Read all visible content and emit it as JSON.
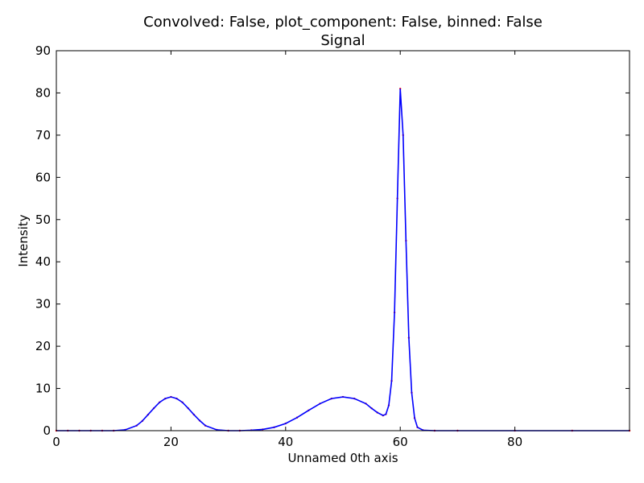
{
  "chart_data": {
    "type": "line",
    "title": "Convolved: False, plot_component: False, binned: False",
    "subtitle": "Signal",
    "xlabel": "Unnamed 0th axis",
    "ylabel": "Intensity",
    "xlim": [
      0,
      100
    ],
    "ylim": [
      0,
      90
    ],
    "xticks": [
      0,
      20,
      40,
      60,
      80
    ],
    "yticks": [
      0,
      10,
      20,
      30,
      40,
      50,
      60,
      70,
      80,
      90
    ],
    "grid": false,
    "legend": "none",
    "series": [
      {
        "role": "data-markers",
        "color": "#ff0000",
        "x": [
          0,
          2,
          4,
          6,
          8,
          10,
          12,
          14,
          15,
          16,
          17,
          18,
          19,
          20,
          21,
          22,
          23,
          24,
          25,
          26,
          28,
          30,
          32,
          34,
          36,
          38,
          40,
          42,
          44,
          46,
          48,
          50,
          52,
          54,
          55,
          56,
          57,
          57.5,
          58,
          58.5,
          59,
          59.5,
          60,
          60.5,
          61,
          61.5,
          62,
          62.5,
          63,
          64,
          66,
          70,
          80,
          90,
          100
        ],
        "y": [
          0,
          0,
          0,
          0,
          0,
          0,
          0.2,
          1.2,
          2.3,
          3.8,
          5.3,
          6.7,
          7.6,
          8.0,
          7.6,
          6.7,
          5.3,
          3.8,
          2.4,
          1.2,
          0.2,
          0,
          0,
          0.1,
          0.3,
          0.8,
          1.7,
          3.1,
          4.8,
          6.4,
          7.6,
          8.0,
          7.6,
          6.4,
          5.3,
          4.3,
          3.6,
          3.9,
          6.0,
          11.8,
          28.0,
          55.0,
          81.0,
          70.0,
          45.0,
          22.0,
          9.0,
          3.0,
          0.8,
          0.1,
          0,
          0,
          0,
          0,
          0
        ]
      },
      {
        "role": "model-line",
        "color": "#0000ff",
        "x": [
          0,
          2,
          4,
          6,
          8,
          10,
          12,
          14,
          15,
          16,
          17,
          18,
          19,
          20,
          21,
          22,
          23,
          24,
          25,
          26,
          28,
          30,
          32,
          34,
          36,
          38,
          40,
          42,
          44,
          46,
          48,
          50,
          52,
          54,
          55,
          56,
          57,
          57.5,
          58,
          58.5,
          59,
          59.5,
          60,
          60.5,
          61,
          61.5,
          62,
          62.5,
          63,
          64,
          66,
          70,
          80,
          90,
          100
        ],
        "y": [
          0,
          0,
          0,
          0,
          0,
          0,
          0.2,
          1.2,
          2.3,
          3.8,
          5.3,
          6.7,
          7.6,
          8.0,
          7.6,
          6.7,
          5.3,
          3.8,
          2.4,
          1.2,
          0.2,
          0,
          0,
          0.1,
          0.3,
          0.8,
          1.7,
          3.1,
          4.8,
          6.4,
          7.6,
          8.0,
          7.6,
          6.4,
          5.3,
          4.3,
          3.6,
          3.9,
          6.0,
          11.8,
          28.0,
          55.0,
          81.0,
          70.0,
          45.0,
          22.0,
          9.0,
          3.0,
          0.8,
          0.1,
          0,
          0,
          0,
          0,
          0
        ]
      }
    ]
  }
}
